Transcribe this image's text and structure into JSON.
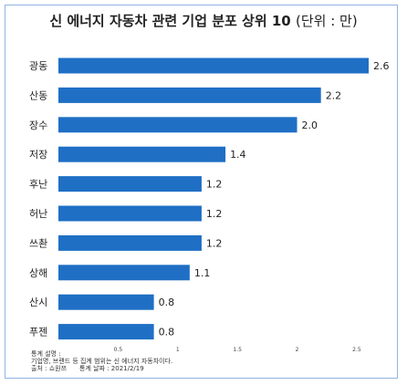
{
  "chart_data": {
    "type": "bar",
    "orientation": "horizontal",
    "title": "신 에너지 자동차 관련 기업 분포 상위 10",
    "title_unit": "(단위 : 만)",
    "categories": [
      "광동",
      "산동",
      "장수",
      "저장",
      "후난",
      "허난",
      "쓰촨",
      "상해",
      "산시",
      "푸젠"
    ],
    "values": [
      2.6,
      2.2,
      2.0,
      1.4,
      1.2,
      1.2,
      1.2,
      1.1,
      0.8,
      0.8
    ],
    "value_labels": [
      "2.6",
      "2.2",
      "2.0",
      "1.4",
      "1.2",
      "1.2",
      "1.2",
      "1.1",
      "0.8",
      "0.8"
    ],
    "xticks": [
      0.5,
      1,
      1.5,
      2,
      2.5
    ],
    "xtick_labels": [
      "0.5",
      "1",
      "1.5",
      "2",
      "2.5"
    ],
    "xlim": [
      0,
      2.6
    ],
    "grid": false,
    "bar_color": "#1f6fc5"
  },
  "notes": {
    "heading": "통계 설명 :",
    "line1": "기업명, 브랜드 등 집계 범위는 신 에너지 자동차이다.",
    "source": "출처 : 쇼원쯔",
    "date": "통계 날짜 : 2021/2/19"
  }
}
